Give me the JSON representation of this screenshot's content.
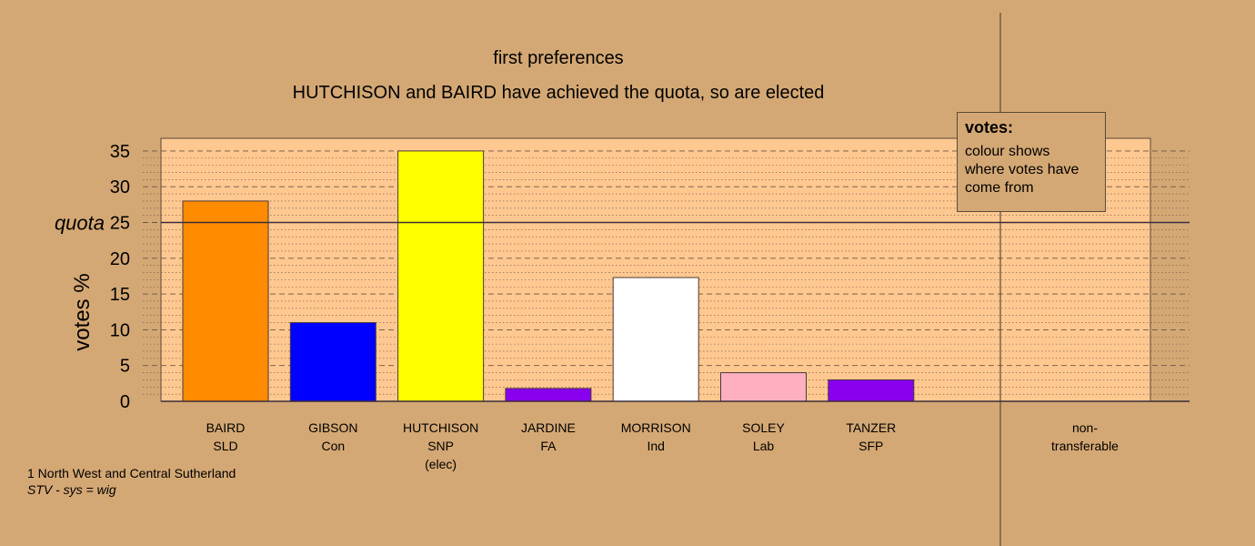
{
  "chart_data": {
    "type": "bar",
    "title": "first preferences",
    "subtitle": "HUTCHISON and BAIRD have achieved the quota, so are elected",
    "ylabel": "votes %",
    "ylim": [
      0,
      35
    ],
    "yticks": [
      0,
      5,
      10,
      15,
      20,
      25,
      30,
      35
    ],
    "quota": 25,
    "quota_label": "quota",
    "grid": true,
    "categories": [
      {
        "name": "BAIRD",
        "party": "SLD",
        "note": "",
        "value": 28.0,
        "color": "#ff8c00"
      },
      {
        "name": "GIBSON",
        "party": "Con",
        "note": "",
        "value": 11.0,
        "color": "#0000ff"
      },
      {
        "name": "HUTCHISON",
        "party": "SNP",
        "note": "(elec)",
        "value": 35.0,
        "color": "#ffff00"
      },
      {
        "name": "JARDINE",
        "party": "FA",
        "note": "",
        "value": 1.8,
        "color": "#8800ee"
      },
      {
        "name": "MORRISON",
        "party": "Ind",
        "note": "",
        "value": 17.3,
        "color": "#ffffff"
      },
      {
        "name": "SOLEY",
        "party": "Lab",
        "note": "",
        "value": 4.0,
        "color": "#ffb0c0"
      },
      {
        "name": "TANZER",
        "party": "SFP",
        "note": "",
        "value": 3.0,
        "color": "#8800ee"
      }
    ],
    "nontransferable": {
      "line1": "non-",
      "line2": "transferable",
      "value": 0
    },
    "legend": {
      "title": "votes:",
      "text": "colour shows where votes have come from",
      "placement": "top-right"
    }
  },
  "info": {
    "constituency": "1 North West and Central Sutherland",
    "system": "STV - sys = wig"
  }
}
